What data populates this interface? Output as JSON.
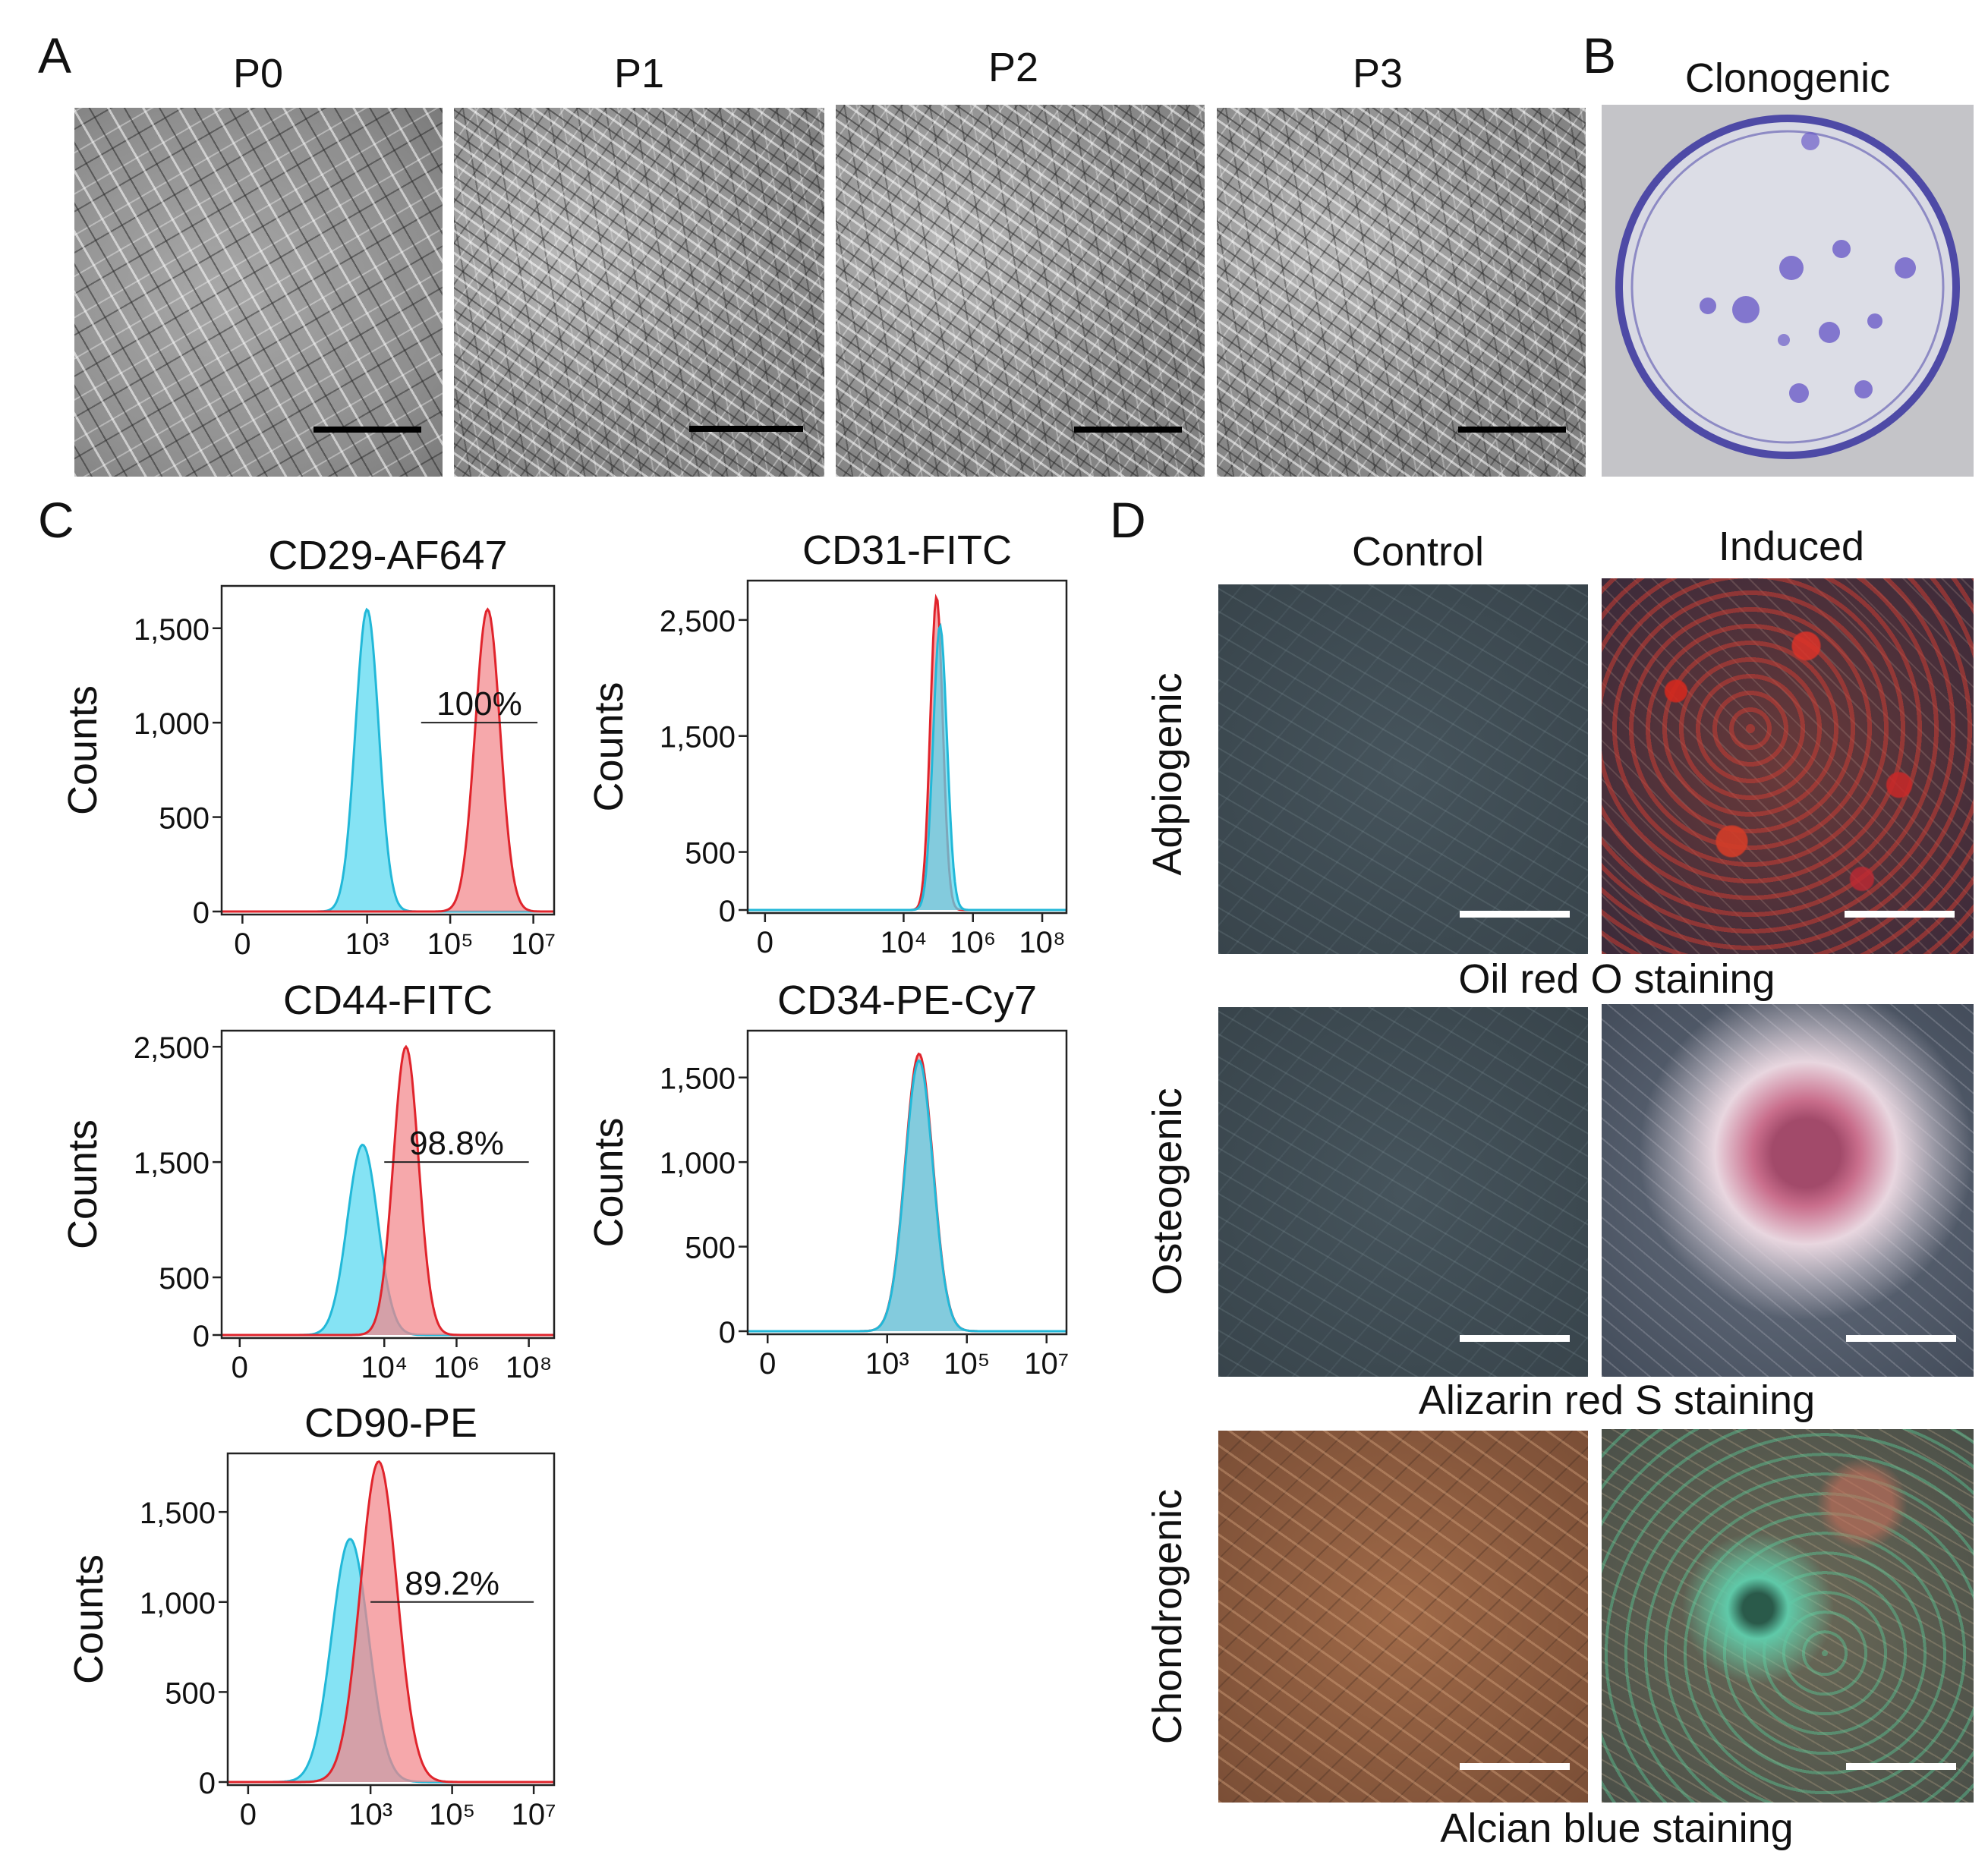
{
  "panels": {
    "A": {
      "letter": "A",
      "passages": [
        "P0",
        "P1",
        "P2",
        "P3"
      ]
    },
    "B": {
      "letter": "B",
      "title": "Clonogenic"
    },
    "C": {
      "letter": "C"
    },
    "D": {
      "letter": "D",
      "col_headers": [
        "Control",
        "Induced"
      ],
      "rows": [
        {
          "label": "Adpiogenic",
          "stain": "Oil red O staining"
        },
        {
          "label": "Osteogenic",
          "stain": "Alizarin red S staining"
        },
        {
          "label": "Chondrogenic",
          "stain": "Alcian blue staining"
        }
      ]
    }
  },
  "colors": {
    "control_fill": "#56d8f0",
    "control_line": "#22b8d8",
    "marker_fill": "#f2868a",
    "marker_line": "#e0242c",
    "overlap_fill": "#7a9cb0"
  },
  "chart_data": [
    {
      "type": "histogram",
      "title": "CD29-AF647",
      "ylabel": "Counts",
      "xscale": "log",
      "ylim": [
        0,
        1700
      ],
      "yticks": [
        0,
        500,
        1000,
        1500
      ],
      "ytick_labels": [
        "0",
        "500",
        "1,000",
        "1,500"
      ],
      "xticks": [
        0,
        3,
        5,
        7
      ],
      "xtick_labels": [
        "0",
        "10³",
        "10⁵",
        "10⁷"
      ],
      "gate_label": "100%",
      "gate_x": [
        4.3,
        7.1
      ],
      "gate_y": 1000,
      "series": [
        {
          "name": "control",
          "peak_log": 3.0,
          "width": 0.28,
          "peak": 1600
        },
        {
          "name": "marker",
          "peak_log": 5.9,
          "width": 0.3,
          "peak": 1600
        }
      ]
    },
    {
      "type": "histogram",
      "title": "CD44-FITC",
      "ylabel": "Counts",
      "xscale": "log",
      "ylim": [
        0,
        2600
      ],
      "yticks": [
        0,
        500,
        1500,
        2500
      ],
      "ytick_labels": [
        "0",
        "500",
        "1,500",
        "2,500"
      ],
      "xticks": [
        0,
        4,
        6,
        8
      ],
      "xtick_labels": [
        "0",
        "10⁴",
        "10⁶",
        "10⁸"
      ],
      "gate_label": "98.8%",
      "gate_x": [
        4.0,
        8.0
      ],
      "gate_y": 1500,
      "series": [
        {
          "name": "control",
          "peak_log": 3.4,
          "width": 0.42,
          "peak": 1650
        },
        {
          "name": "marker",
          "peak_log": 4.6,
          "width": 0.35,
          "peak": 2500
        }
      ]
    },
    {
      "type": "histogram",
      "title": "CD90-PE",
      "ylabel": "Counts",
      "xscale": "log",
      "ylim": [
        0,
        1800
      ],
      "yticks": [
        0,
        500,
        1000,
        1500
      ],
      "ytick_labels": [
        "0",
        "500",
        "1,000",
        "1,500"
      ],
      "xticks": [
        0,
        3,
        5,
        7
      ],
      "xtick_labels": [
        "0",
        "10³",
        "10⁵",
        "10⁷"
      ],
      "gate_label": "89.2%",
      "gate_x": [
        3.0,
        7.0
      ],
      "gate_y": 1000,
      "series": [
        {
          "name": "control",
          "peak_log": 2.5,
          "width": 0.45,
          "peak": 1350
        },
        {
          "name": "marker",
          "peak_log": 3.2,
          "width": 0.45,
          "peak": 1780
        }
      ]
    },
    {
      "type": "histogram",
      "title": "CD31-FITC",
      "ylabel": "Counts",
      "xscale": "log",
      "ylim": [
        0,
        2800
      ],
      "yticks": [
        0,
        500,
        1500,
        2500
      ],
      "ytick_labels": [
        "0",
        "500",
        "1,500",
        "2,500"
      ],
      "xticks": [
        0,
        4,
        6,
        8
      ],
      "xtick_labels": [
        "0",
        "10⁴",
        "10⁶",
        "10⁸"
      ],
      "gate_label": "",
      "series": [
        {
          "name": "marker",
          "peak_log": 4.95,
          "width": 0.18,
          "peak": 2700
        },
        {
          "name": "control",
          "peak_log": 5.05,
          "width": 0.2,
          "peak": 2450
        }
      ]
    },
    {
      "type": "histogram",
      "title": "CD34-PE-Cy7",
      "ylabel": "Counts",
      "xscale": "log",
      "ylim": [
        0,
        1750
      ],
      "yticks": [
        0,
        500,
        1000,
        1500
      ],
      "ytick_labels": [
        "0",
        "500",
        "1,000",
        "1,500"
      ],
      "xticks": [
        0,
        3,
        5,
        7
      ],
      "xtick_labels": [
        "0",
        "10³",
        "10⁵",
        "10⁷"
      ],
      "gate_label": "",
      "series": [
        {
          "name": "marker",
          "peak_log": 3.8,
          "width": 0.35,
          "peak": 1640
        },
        {
          "name": "control",
          "peak_log": 3.8,
          "width": 0.35,
          "peak": 1600
        }
      ]
    }
  ]
}
